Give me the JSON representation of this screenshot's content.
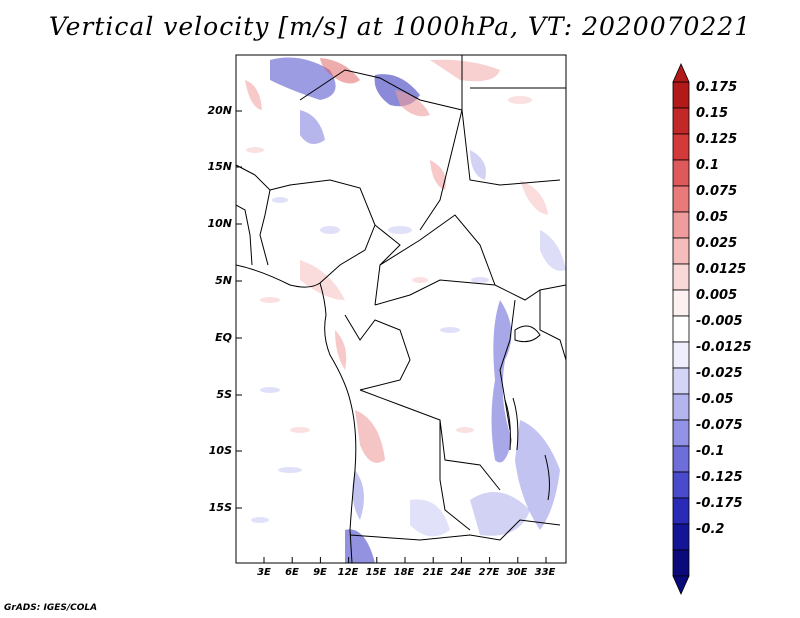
{
  "title": "Vertical velocity [m/s] at 1000hPa, VT: 2020070221",
  "footer": "GrADS: IGES/COLA",
  "map": {
    "lat_ticks": [
      "20N",
      "15N",
      "10N",
      "5N",
      "EQ",
      "5S",
      "10S",
      "15S"
    ],
    "lon_ticks": [
      "3E",
      "6E",
      "9E",
      "12E",
      "15E",
      "18E",
      "21E",
      "24E",
      "27E",
      "30E",
      "33E"
    ]
  },
  "colorbar": {
    "labels": [
      "0.175",
      "0.15",
      "0.125",
      "0.1",
      "0.075",
      "0.05",
      "0.025",
      "0.0125",
      "0.005",
      "-0.005",
      "-0.0125",
      "-0.025",
      "-0.05",
      "-0.075",
      "-0.1",
      "-0.125",
      "-0.175",
      "-0.2"
    ],
    "colors": [
      "#b21a1a",
      "#c22828",
      "#d33a3a",
      "#de5a5a",
      "#e87a7a",
      "#ef9c9c",
      "#f5bcbc",
      "#f9d8d8",
      "#fdf0f0",
      "#ffffff",
      "#eeeefd",
      "#d4d4f6",
      "#b4b4ef",
      "#9292e6",
      "#6e6edb",
      "#4a4acc",
      "#2a2ab8",
      "#141496",
      "#0a0a7a"
    ]
  }
}
